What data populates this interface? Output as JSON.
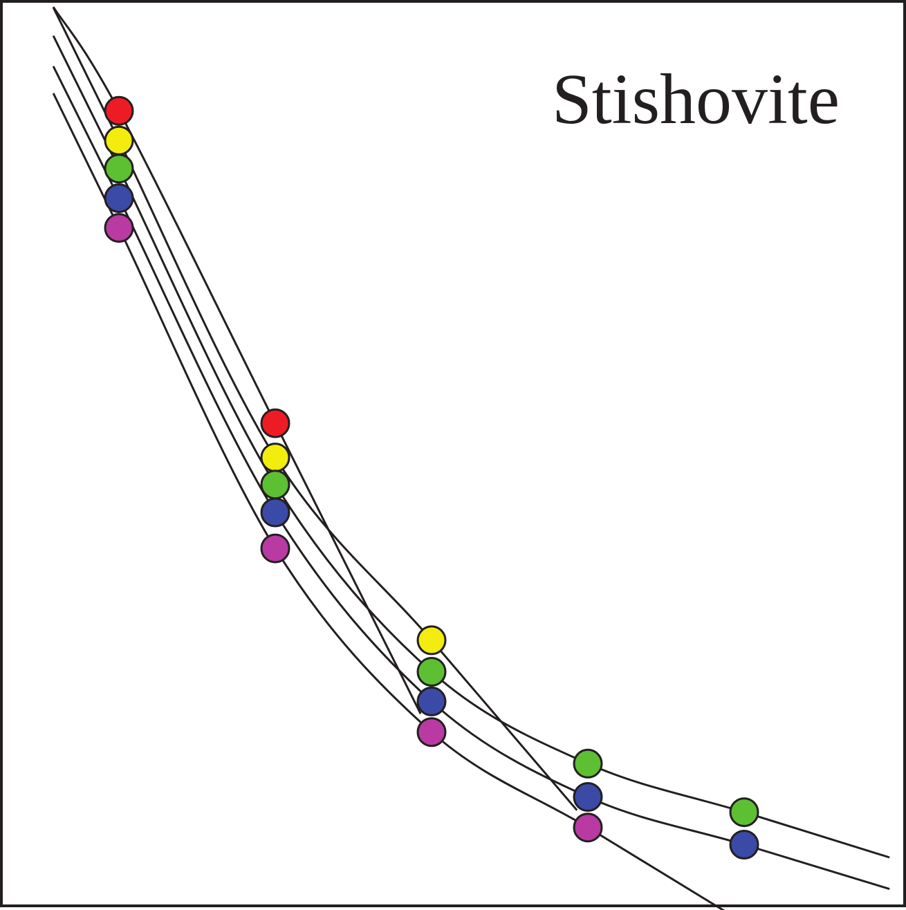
{
  "chart_data": {
    "type": "line",
    "title": "Stishovite",
    "xlabel": "",
    "ylabel": "",
    "grid": false,
    "legend": "none",
    "colors": {
      "line": "#231f20",
      "frame": "#231f20",
      "markers": [
        "#ed1c24",
        "#f2ec0f",
        "#5dbf32",
        "#3a4aa6",
        "#b93aa3"
      ]
    },
    "series": [
      {
        "marker_color": "#ed1c24",
        "values": [
          {
            "x": 1,
            "y": 0.883
          },
          {
            "x": 2,
            "y": 0.536
          }
        ]
      },
      {
        "marker_color": "#f2ec0f",
        "values": [
          {
            "x": 1,
            "y": 0.85
          },
          {
            "x": 2,
            "y": 0.498
          },
          {
            "x": 3,
            "y": 0.295
          }
        ]
      },
      {
        "marker_color": "#5dbf32",
        "values": [
          {
            "x": 1,
            "y": 0.819
          },
          {
            "x": 2,
            "y": 0.468
          },
          {
            "x": 3,
            "y": 0.26
          },
          {
            "x": 4,
            "y": 0.158
          },
          {
            "x": 5,
            "y": 0.104
          }
        ]
      },
      {
        "marker_color": "#3a4aa6",
        "values": [
          {
            "x": 1,
            "y": 0.786
          },
          {
            "x": 2,
            "y": 0.437
          },
          {
            "x": 3,
            "y": 0.227
          },
          {
            "x": 4,
            "y": 0.121
          },
          {
            "x": 5,
            "y": 0.068
          }
        ]
      },
      {
        "marker_color": "#b93aa3",
        "values": [
          {
            "x": 1,
            "y": 0.753
          },
          {
            "x": 2,
            "y": 0.397
          },
          {
            "x": 3,
            "y": 0.193
          },
          {
            "x": 4,
            "y": 0.087
          }
        ]
      }
    ]
  }
}
